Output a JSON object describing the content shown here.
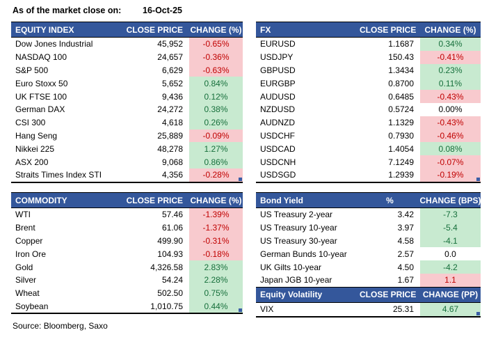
{
  "page": {
    "as_of_label": "As of the market close on:",
    "as_of_date": "16-Oct-25",
    "source": "Source: Bloomberg, Saxo"
  },
  "colors": {
    "header_bg": "#34579B",
    "header_text": "#FFFFFF",
    "good_bg": "#C8EAD0",
    "good_text": "#166F3B",
    "bad_bg": "#F8CACE",
    "bad_text": "#C00000",
    "handle_blue": "#3B5EA6"
  },
  "tables": [
    {
      "id": "equity-index",
      "title": "EQUITY INDEX",
      "price_header": "CLOSE PRICE",
      "change_header": "CHANGE (%)",
      "price_align": "right",
      "rows": [
        {
          "name": "Dow Jones Industrial",
          "value": "45,952",
          "change": "-0.65%",
          "tone": "bad"
        },
        {
          "name": "NASDAQ 100",
          "value": "24,657",
          "change": "-0.36%",
          "tone": "bad"
        },
        {
          "name": "S&P 500",
          "value": "6,629",
          "change": "-0.63%",
          "tone": "bad"
        },
        {
          "name": "Euro Stoxx 50",
          "value": "5,652",
          "change": "0.84%",
          "tone": "good"
        },
        {
          "name": "UK FTSE 100",
          "value": "9,436",
          "change": "0.12%",
          "tone": "good"
        },
        {
          "name": "German DAX",
          "value": "24,272",
          "change": "0.38%",
          "tone": "good"
        },
        {
          "name": "CSI 300",
          "value": "4,618",
          "change": "0.26%",
          "tone": "good"
        },
        {
          "name": "Hang Seng",
          "value": "25,889",
          "change": "-0.09%",
          "tone": "bad"
        },
        {
          "name": "Nikkei 225",
          "value": "48,278",
          "change": "1.27%",
          "tone": "good"
        },
        {
          "name": "ASX 200",
          "value": "9,068",
          "change": "0.86%",
          "tone": "good"
        },
        {
          "name": "Straits Times Index STI",
          "value": "4,356",
          "change": "-0.28%",
          "tone": "bad"
        }
      ]
    },
    {
      "id": "fx",
      "title": "FX",
      "price_header": "CLOSE PRICE",
      "change_header": "CHANGE (%)",
      "price_align": "right",
      "rows": [
        {
          "name": "EURUSD",
          "value": "1.1687",
          "change": "0.34%",
          "tone": "good"
        },
        {
          "name": "USDJPY",
          "value": "150.43",
          "change": "-0.41%",
          "tone": "bad"
        },
        {
          "name": "GBPUSD",
          "value": "1.3434",
          "change": "0.23%",
          "tone": "good"
        },
        {
          "name": "EURGBP",
          "value": "0.8700",
          "change": "0.11%",
          "tone": "good"
        },
        {
          "name": "AUDUSD",
          "value": "0.6485",
          "change": "-0.43%",
          "tone": "bad"
        },
        {
          "name": "NZDUSD",
          "value": "0.5724",
          "change": "0.00%",
          "tone": "neutral"
        },
        {
          "name": "AUDNZD",
          "value": "1.1329",
          "change": "-0.43%",
          "tone": "bad"
        },
        {
          "name": "USDCHF",
          "value": "0.7930",
          "change": "-0.46%",
          "tone": "bad"
        },
        {
          "name": "USDCAD",
          "value": "1.4054",
          "change": "0.08%",
          "tone": "good"
        },
        {
          "name": "USDCNH",
          "value": "7.1249",
          "change": "-0.07%",
          "tone": "bad"
        },
        {
          "name": "USDSGD",
          "value": "1.2939",
          "change": "-0.19%",
          "tone": "bad"
        }
      ]
    },
    {
      "id": "commodity",
      "title": "COMMODITY",
      "price_header": "CLOSE PRICE",
      "change_header": "CHANGE (%)",
      "price_align": "right",
      "rows": [
        {
          "name": "WTI",
          "value": "57.46",
          "change": "-1.39%",
          "tone": "bad"
        },
        {
          "name": "Brent",
          "value": "61.06",
          "change": "-1.37%",
          "tone": "bad"
        },
        {
          "name": "Copper",
          "value": "499.90",
          "change": "-0.31%",
          "tone": "bad"
        },
        {
          "name": "Iron Ore",
          "value": "104.93",
          "change": "-0.18%",
          "tone": "bad"
        },
        {
          "name": "Gold",
          "value": "4,326.58",
          "change": "2.83%",
          "tone": "good"
        },
        {
          "name": "Silver",
          "value": "54.24",
          "change": "2.28%",
          "tone": "good"
        },
        {
          "name": "Wheat",
          "value": "502.50",
          "change": "0.75%",
          "tone": "good"
        },
        {
          "name": "Soybean",
          "value": "1,010.75",
          "change": "0.44%",
          "tone": "good"
        }
      ]
    },
    {
      "id": "bond-yield",
      "title": "Bond Yield",
      "price_header": "%",
      "change_header": "CHANGE (BPS)",
      "price_align": "center",
      "rows": [
        {
          "name": "US Treasury 2-year",
          "value": "3.42",
          "change": "-7.3",
          "tone": "good"
        },
        {
          "name": "US Treasury 10-year",
          "value": "3.97",
          "change": "-5.4",
          "tone": "good"
        },
        {
          "name": "US Treasury 30-year",
          "value": "4.58",
          "change": "-4.1",
          "tone": "good"
        },
        {
          "name": "German Bunds 10-year",
          "value": "2.57",
          "change": "0.0",
          "tone": "neutral"
        },
        {
          "name": "UK Gilts 10-year",
          "value": "4.50",
          "change": "-4.2",
          "tone": "good"
        },
        {
          "name": "Japan JGB 10-year",
          "value": "1.67",
          "change": "1.1",
          "tone": "bad"
        }
      ]
    },
    {
      "id": "equity-volatility",
      "title": "Equity Volatility",
      "price_header": "CLOSE PRICE",
      "change_header": "CHANGE (PP)",
      "price_align": "right",
      "rows": [
        {
          "name": "VIX",
          "value": "25.31",
          "change": "4.67",
          "tone": "good"
        }
      ]
    }
  ]
}
